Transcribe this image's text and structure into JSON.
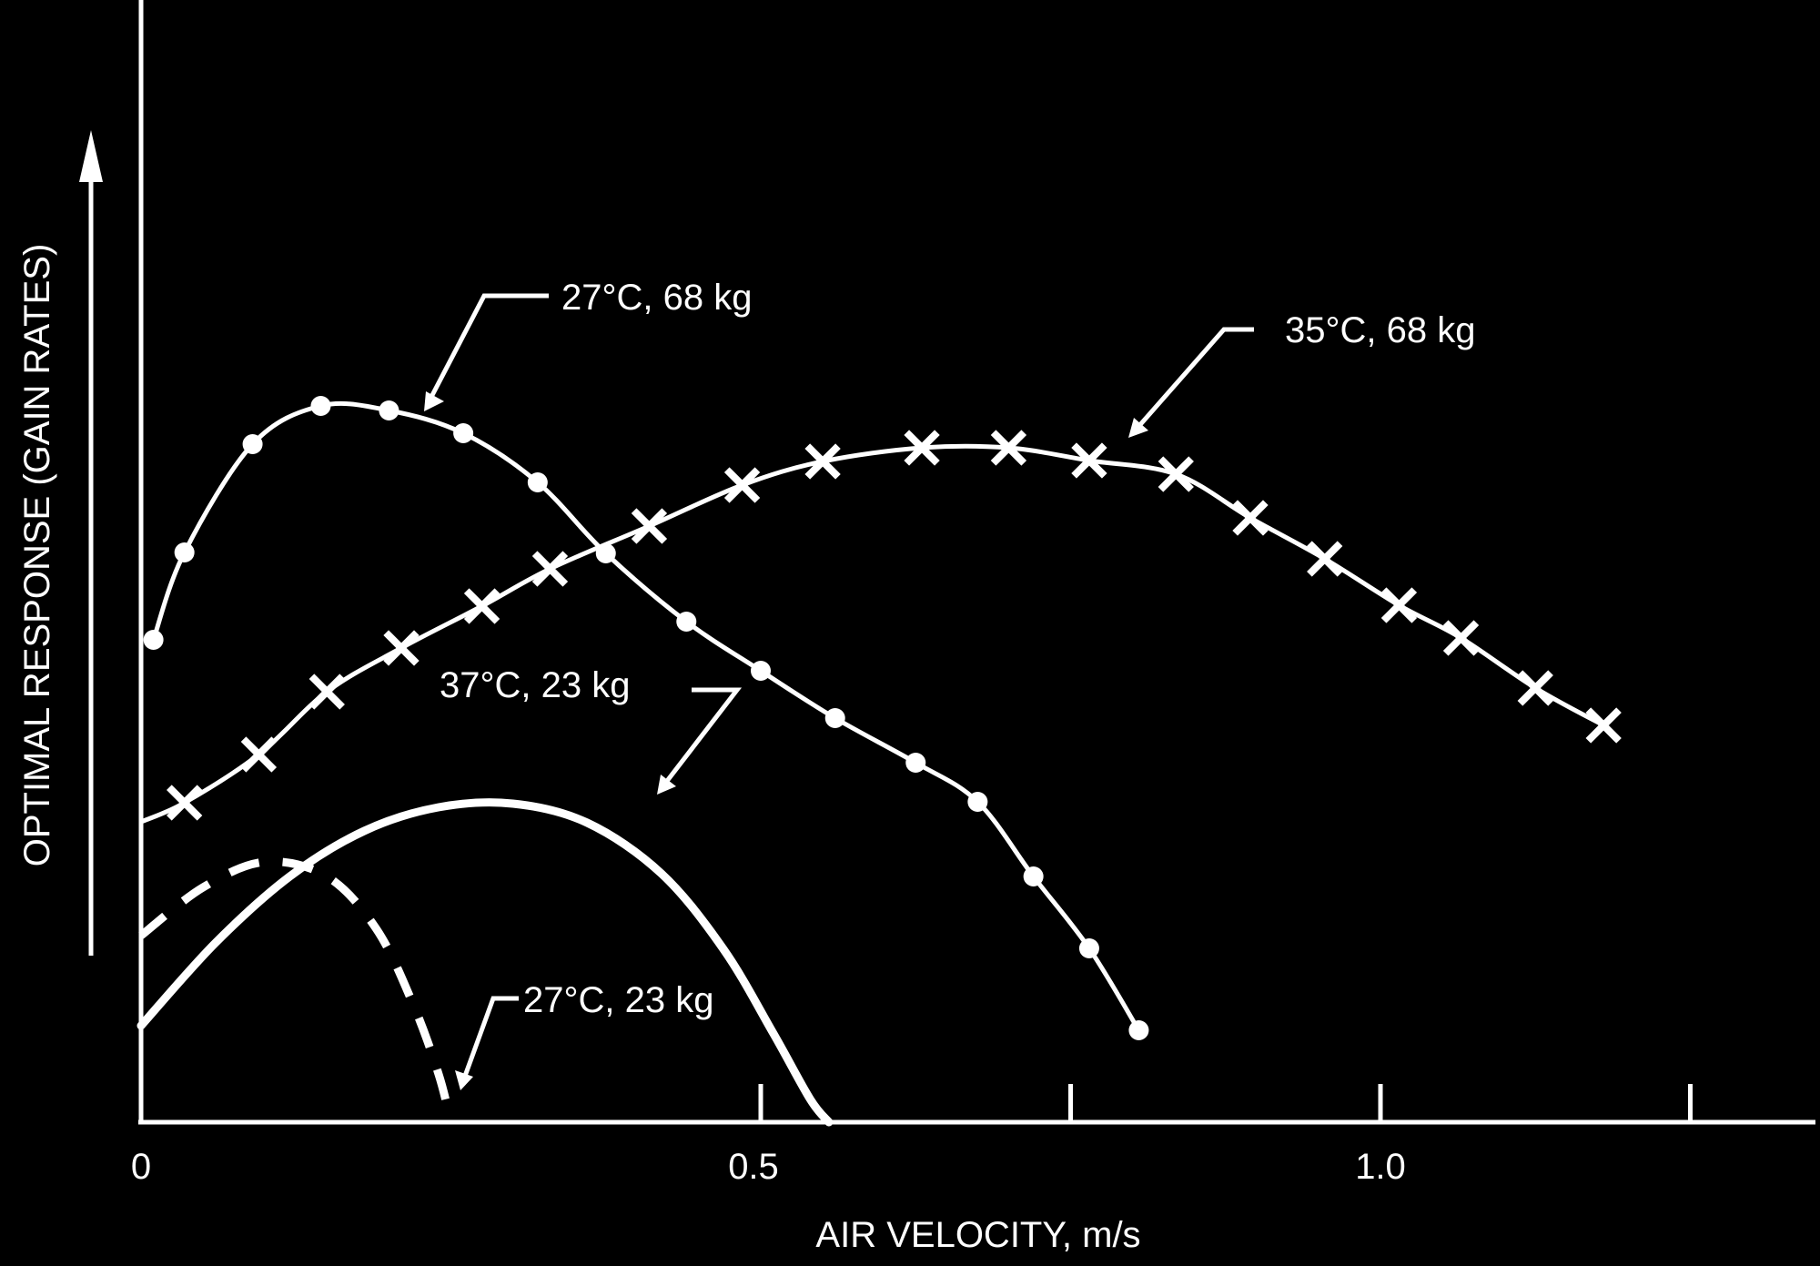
{
  "colors": {
    "background": "#000000",
    "foreground": "#ffffff"
  },
  "chart_data": {
    "type": "line",
    "title": "",
    "xlabel": "AIR VELOCITY, m/s",
    "ylabel": "OPTIMAL RESPONSE (GAIN RATES)",
    "xlim": [
      0,
      1.35
    ],
    "ylim": [
      0,
      1.2
    ],
    "x_ticks": [
      0.5,
      0.75,
      1.0,
      1.25
    ],
    "x_tick_labels": [
      {
        "value": 0,
        "label": "0"
      },
      {
        "value": 0.5,
        "label": "0.5"
      },
      {
        "value": 1.0,
        "label": "1.0"
      }
    ],
    "grid": false,
    "series": [
      {
        "name": "27°C, 68 kg",
        "marker": "circle",
        "line_style": "solid",
        "x": [
          0.01,
          0.035,
          0.09,
          0.145,
          0.2,
          0.26,
          0.32,
          0.375,
          0.44,
          0.5,
          0.56,
          0.625,
          0.675,
          0.72,
          0.765,
          0.805
        ],
        "y": [
          0.53,
          0.626,
          0.745,
          0.787,
          0.782,
          0.757,
          0.703,
          0.625,
          0.55,
          0.496,
          0.444,
          0.395,
          0.352,
          0.27,
          0.191,
          0.101
        ]
      },
      {
        "name": "35°C, 68 kg",
        "marker": "x",
        "line_style": "solid",
        "x": [
          0.035,
          0.095,
          0.15,
          0.21,
          0.275,
          0.33,
          0.41,
          0.485,
          0.55,
          0.63,
          0.7,
          0.765,
          0.835,
          0.895,
          0.955,
          1.015,
          1.065,
          1.125,
          1.18
        ],
        "y": [
          0.351,
          0.404,
          0.473,
          0.521,
          0.567,
          0.608,
          0.655,
          0.7,
          0.726,
          0.741,
          0.741,
          0.727,
          0.712,
          0.664,
          0.619,
          0.568,
          0.532,
          0.477,
          0.436
        ]
      },
      {
        "name": "37°C, 23 kg",
        "marker": "none",
        "line_style": "solid-thick",
        "x": [
          0.0,
          0.06,
          0.12,
          0.18,
          0.24,
          0.3,
          0.36,
          0.42,
          0.47,
          0.51,
          0.54,
          0.555
        ],
        "y": [
          0.106,
          0.197,
          0.27,
          0.32,
          0.346,
          0.35,
          0.329,
          0.273,
          0.19,
          0.098,
          0.025,
          0.0
        ]
      },
      {
        "name": "27°C, 23 kg",
        "marker": "none",
        "line_style": "dashed",
        "x": [
          0.0,
          0.05,
          0.1,
          0.15,
          0.19,
          0.22,
          0.24,
          0.25
        ],
        "y": [
          0.205,
          0.258,
          0.286,
          0.27,
          0.212,
          0.128,
          0.053,
          0.0
        ]
      }
    ],
    "annotations": [
      {
        "text": "27°C, 68 kg",
        "series": "27°C, 68 kg"
      },
      {
        "text": "35°C, 68 kg",
        "series": "35°C, 68 kg"
      },
      {
        "text": "37°C, 23 kg",
        "series": "37°C, 23 kg"
      },
      {
        "text": "27°C, 23 kg",
        "series": "27°C, 23 kg"
      }
    ]
  }
}
